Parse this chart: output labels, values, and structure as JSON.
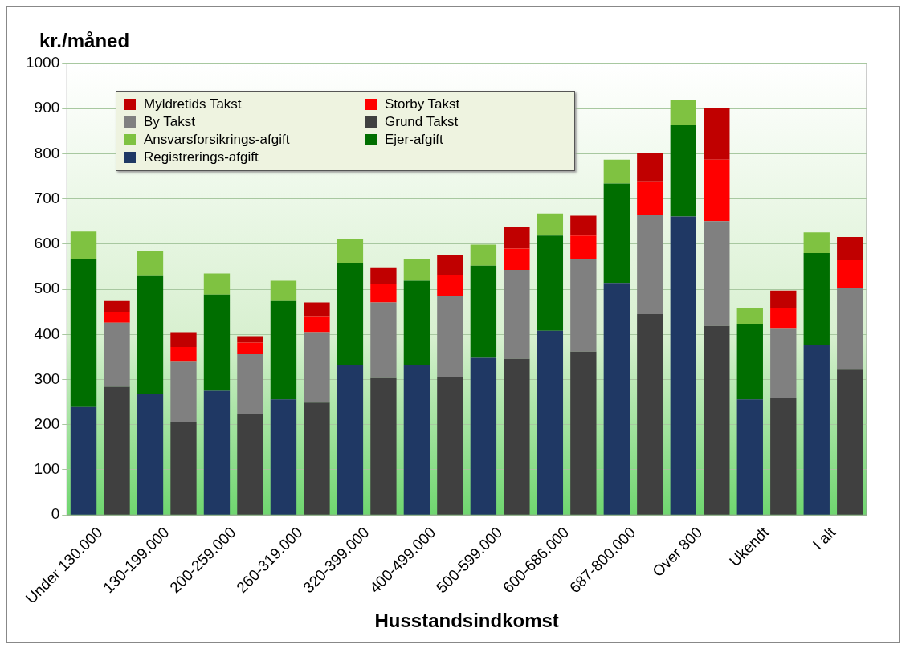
{
  "chart_data": {
    "type": "bar",
    "stacked": true,
    "ylabel": "kr./måned",
    "xlabel": "Husstandsindkomst",
    "categories": [
      "Under 130.000",
      null,
      "130-199.000",
      null,
      "200-259.000",
      null,
      "260-319.000",
      null,
      "320-399.000",
      null,
      "400-499.000",
      null,
      "500-599.000",
      null,
      "600-686.000",
      null,
      "687-800.000",
      null,
      "Over 800",
      null,
      "Ukendt",
      null,
      "I alt",
      null
    ],
    "series": [
      {
        "name": "Registrerings-afgift",
        "color": "#1f3864",
        "values": [
          239,
          null,
          268,
          null,
          275,
          null,
          256,
          null,
          332,
          null,
          332,
          null,
          348,
          null,
          408,
          null,
          514,
          null,
          661,
          null,
          256,
          null,
          377,
          null
        ]
      },
      {
        "name": "Ejer-afgift",
        "color": "#006e00",
        "values": [
          328,
          null,
          261,
          null,
          213,
          null,
          218,
          null,
          227,
          null,
          187,
          null,
          204,
          null,
          211,
          null,
          220,
          null,
          202,
          null,
          166,
          null,
          203,
          null
        ]
      },
      {
        "name": "Ansvarsforsikrings-afgift",
        "color": "#7fc241",
        "values": [
          61,
          null,
          56,
          null,
          47,
          null,
          45,
          null,
          52,
          null,
          47,
          null,
          47,
          null,
          49,
          null,
          53,
          null,
          57,
          null,
          36,
          null,
          46,
          null
        ]
      },
      {
        "name": "Grund Takst",
        "color": "#404040",
        "values": [
          null,
          284,
          null,
          206,
          null,
          223,
          null,
          249,
          null,
          303,
          null,
          306,
          null,
          346,
          null,
          362,
          null,
          445,
          null,
          419,
          null,
          260,
          null,
          322
        ]
      },
      {
        "name": "By Takst",
        "color": "#808080",
        "values": [
          null,
          142,
          null,
          133,
          null,
          133,
          null,
          156,
          null,
          168,
          null,
          180,
          null,
          197,
          null,
          205,
          null,
          219,
          null,
          232,
          null,
          152,
          null,
          181
        ]
      },
      {
        "name": "Storby Takst",
        "color": "#ff0000",
        "values": [
          null,
          24,
          null,
          33,
          null,
          26,
          null,
          34,
          null,
          41,
          null,
          45,
          null,
          47,
          null,
          52,
          null,
          75,
          null,
          136,
          null,
          46,
          null,
          61
        ]
      },
      {
        "name": "Myldretids Takst",
        "color": "#c00000",
        "values": [
          null,
          24,
          null,
          33,
          null,
          14,
          null,
          32,
          null,
          35,
          null,
          45,
          null,
          47,
          null,
          44,
          null,
          62,
          null,
          114,
          null,
          39,
          null,
          52
        ]
      }
    ],
    "ylim": [
      0,
      1000
    ],
    "yticks": [
      0,
      100,
      200,
      300,
      400,
      500,
      600,
      700,
      800,
      900,
      1000
    ],
    "grid": "y",
    "legend": "top left"
  }
}
